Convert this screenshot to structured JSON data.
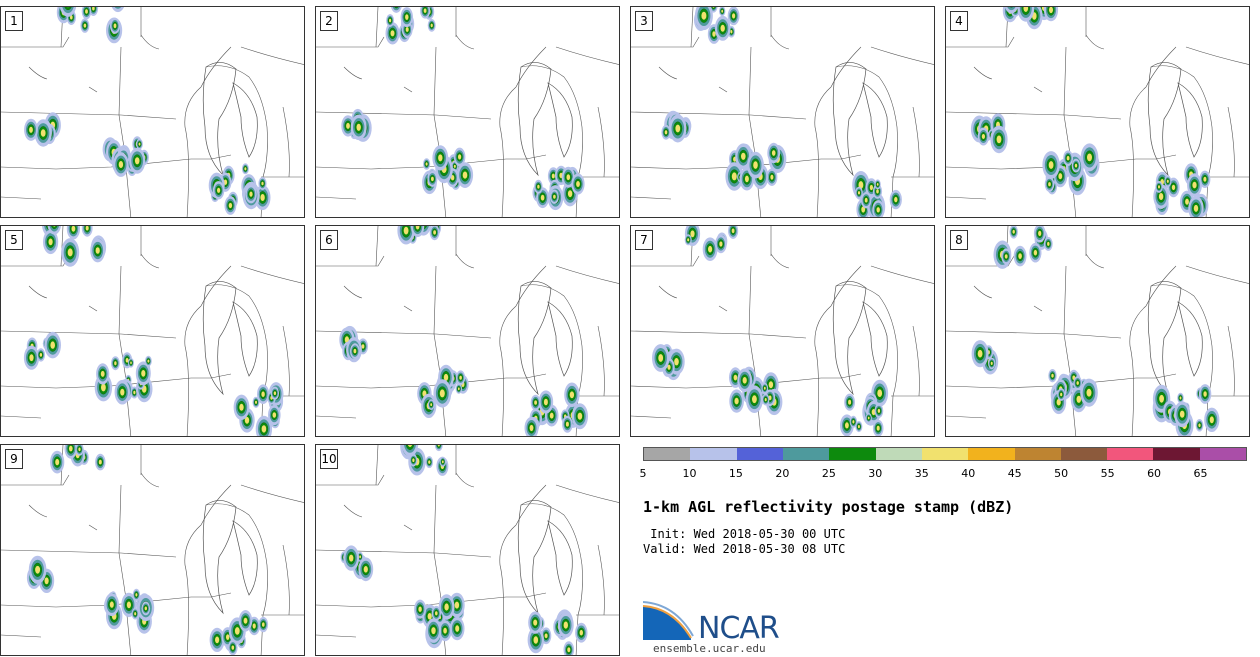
{
  "panels": [
    {
      "id": "panel-1",
      "label": "1"
    },
    {
      "id": "panel-2",
      "label": "2"
    },
    {
      "id": "panel-3",
      "label": "3"
    },
    {
      "id": "panel-4",
      "label": "4"
    },
    {
      "id": "panel-5",
      "label": "5"
    },
    {
      "id": "panel-6",
      "label": "6"
    },
    {
      "id": "panel-7",
      "label": "7"
    },
    {
      "id": "panel-8",
      "label": "8"
    },
    {
      "id": "panel-9",
      "label": "9"
    },
    {
      "id": "panel-10",
      "label": "10"
    }
  ],
  "colorbar": {
    "ticks": [
      "5",
      "10",
      "15",
      "20",
      "25",
      "30",
      "35",
      "40",
      "45",
      "50",
      "55",
      "60",
      "65"
    ],
    "colors": [
      "#a6a6a6",
      "#b7c2ea",
      "#5462d8",
      "#4e9a9d",
      "#0d8a0d",
      "#bfdab8",
      "#f1e16e",
      "#f2b21d",
      "#be8431",
      "#8c5a3c",
      "#f2567c",
      "#6d1733",
      "#aa4ea8"
    ]
  },
  "title": "1-km AGL reflectivity postage stamp (dBZ)",
  "init_line": " Init: Wed 2018-05-30 00 UTC",
  "valid_line": "Valid: Wed 2018-05-30 08 UTC",
  "logo": {
    "text": "NCAR",
    "url": "ensemble.ucar.edu"
  },
  "colors": {
    "border": "#333333",
    "map_lines": "#555555"
  }
}
